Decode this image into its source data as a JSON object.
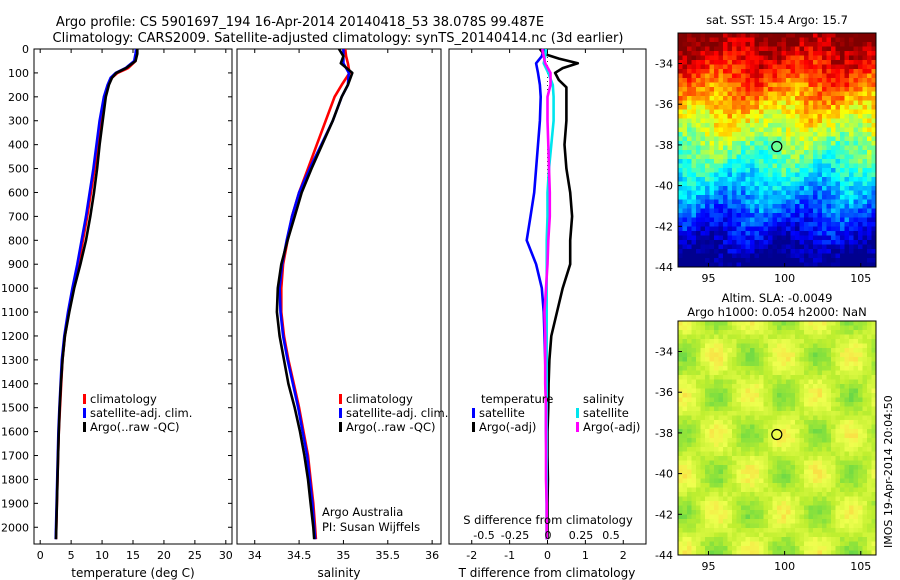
{
  "header": {
    "line1": "Argo profile: CS 5901697_194 16-Apr-2014 20140418_53 38.078S 99.487E",
    "line2": "Climatology: CARS2009. Satellite-adjusted climatology: synTS_20140414.nc (3d earlier)"
  },
  "colors": {
    "climatology": "#ff0000",
    "satellite": "#0000ff",
    "argo": "#000000",
    "salinity_satellite": "#00e5ee",
    "salinity_argo": "#ff00ff"
  },
  "chart_data": [
    {
      "id": "temperature",
      "type": "line",
      "xlabel": "temperature (deg C)",
      "ylabel": "",
      "xlim": [
        -1,
        31
      ],
      "ylim": [
        2070,
        0
      ],
      "xticks": [
        0,
        5,
        10,
        15,
        20,
        25,
        30
      ],
      "yticks": [
        0,
        100,
        200,
        300,
        400,
        500,
        600,
        700,
        800,
        900,
        1000,
        1100,
        1200,
        1300,
        1400,
        1500,
        1600,
        1700,
        1800,
        1900,
        2000
      ],
      "legend": [
        "climatology",
        "satellite-adj. clim.",
        "Argo(..raw -QC)"
      ],
      "legend_position": "lower-center",
      "series": [
        {
          "name": "climatology",
          "color": "#ff0000",
          "depth": [
            0,
            20,
            50,
            80,
            100,
            120,
            150,
            200,
            300,
            400,
            500,
            600,
            700,
            800,
            900,
            1000,
            1100,
            1200,
            1300,
            1400,
            1500,
            1600,
            1700,
            1800,
            1900,
            2000,
            2050
          ],
          "values": [
            15.6,
            15.6,
            15.4,
            14.2,
            12.5,
            11.6,
            11.0,
            10.4,
            9.8,
            9.3,
            8.8,
            8.2,
            7.6,
            6.9,
            6.2,
            5.3,
            4.6,
            4.0,
            3.6,
            3.4,
            3.2,
            3.0,
            2.9,
            2.8,
            2.7,
            2.6,
            2.55
          ]
        },
        {
          "name": "satellite-adj. clim.",
          "color": "#0000ff",
          "depth": [
            0,
            20,
            50,
            80,
            100,
            120,
            150,
            200,
            300,
            400,
            500,
            600,
            700,
            800,
            900,
            1000,
            1100,
            1200,
            1300,
            1400,
            1500,
            1600,
            1700,
            1800,
            1900,
            2000,
            2050
          ],
          "values": [
            15.5,
            15.4,
            15.2,
            13.8,
            12.2,
            11.4,
            10.9,
            10.3,
            9.6,
            9.1,
            8.6,
            8.0,
            7.4,
            6.7,
            6.0,
            5.2,
            4.5,
            3.9,
            3.5,
            3.3,
            3.1,
            2.95,
            2.85,
            2.75,
            2.65,
            2.55,
            2.5
          ]
        },
        {
          "name": "Argo(..raw -QC)",
          "color": "#000000",
          "depth": [
            0,
            20,
            50,
            80,
            100,
            120,
            150,
            200,
            300,
            400,
            500,
            600,
            700,
            800,
            900,
            1000,
            1100,
            1200,
            1300,
            1400,
            1500,
            1600,
            1700,
            1800,
            1900,
            2000,
            2050
          ],
          "values": [
            15.7,
            15.7,
            15.4,
            13.9,
            12.3,
            11.6,
            11.1,
            10.6,
            10.1,
            9.6,
            9.2,
            8.7,
            8.1,
            7.4,
            6.5,
            5.5,
            4.7,
            4.0,
            3.6,
            3.35,
            3.15,
            3.0,
            2.9,
            2.8,
            2.7,
            2.6,
            2.55
          ]
        }
      ]
    },
    {
      "id": "salinity",
      "type": "line",
      "xlabel": "salinity",
      "ylabel": "",
      "xlim": [
        33.8,
        36.1
      ],
      "ylim": [
        2070,
        0
      ],
      "xticks": [
        34,
        34.5,
        35,
        35.5,
        36
      ],
      "xtick_labels": [
        "34",
        "34.5",
        "35",
        "35.5",
        "36"
      ],
      "legend": [
        "climatology",
        "satellite-adj. clim.",
        "Argo(..raw -QC)"
      ],
      "legend_position": "lower-right",
      "annotation": [
        "Argo Australia",
        "PI: Susan Wijffels"
      ],
      "series": [
        {
          "name": "climatology",
          "color": "#ff0000",
          "depth": [
            0,
            30,
            60,
            100,
            150,
            200,
            300,
            400,
            500,
            600,
            700,
            800,
            900,
            1000,
            1100,
            1200,
            1300,
            1400,
            1500,
            1600,
            1700,
            1800,
            1900,
            2000,
            2050
          ],
          "values": [
            35.02,
            35.03,
            35.05,
            35.07,
            34.98,
            34.9,
            34.8,
            34.7,
            34.6,
            34.5,
            34.42,
            34.37,
            34.32,
            34.3,
            34.3,
            34.33,
            34.38,
            34.44,
            34.5,
            34.55,
            34.6,
            34.63,
            34.66,
            34.68,
            34.69
          ]
        },
        {
          "name": "satellite-adj. clim.",
          "color": "#0000ff",
          "depth": [
            0,
            30,
            60,
            100,
            150,
            200,
            300,
            400,
            500,
            600,
            700,
            800,
            900,
            1000,
            1100,
            1200,
            1300,
            1400,
            1500,
            1600,
            1700,
            1800,
            1900,
            2000,
            2050
          ],
          "values": [
            35.0,
            35.0,
            35.0,
            35.06,
            35.05,
            34.98,
            34.88,
            34.75,
            34.62,
            34.5,
            34.42,
            34.36,
            34.31,
            34.28,
            34.29,
            34.32,
            34.37,
            34.43,
            34.49,
            34.54,
            34.59,
            34.62,
            34.65,
            34.67,
            34.68
          ]
        },
        {
          "name": "Argo(..raw -QC)",
          "color": "#000000",
          "depth": [
            0,
            30,
            60,
            100,
            150,
            200,
            300,
            400,
            500,
            600,
            700,
            800,
            900,
            1000,
            1100,
            1200,
            1300,
            1400,
            1500,
            1600,
            1700,
            1800,
            1900,
            2000,
            2050
          ],
          "values": [
            34.95,
            35.0,
            34.97,
            35.1,
            35.05,
            34.98,
            34.88,
            34.76,
            34.64,
            34.53,
            34.45,
            34.37,
            34.3,
            34.26,
            34.25,
            34.28,
            34.33,
            34.38,
            34.45,
            34.51,
            34.56,
            34.6,
            34.63,
            34.66,
            34.67
          ]
        }
      ]
    },
    {
      "id": "differences",
      "type": "line",
      "xlabel": "T difference from climatology",
      "xlabel_top": "S difference from climatology",
      "xlim": [
        -2.6,
        2.6
      ],
      "ylim": [
        2070,
        0
      ],
      "xticks": [
        -2,
        -1,
        0,
        1,
        2
      ],
      "s_xticks": [
        -0.5,
        -0.25,
        0,
        0.25,
        0.5
      ],
      "s_xtick_labels": [
        "-0.5",
        "-0.25",
        "0",
        "0.25",
        "0.5"
      ],
      "legend_temperature_title": "temperature",
      "legend_salinity_title": "salinity",
      "legend": [
        "satellite",
        "Argo(-adj)",
        "satellite",
        "Argo(-adj)"
      ],
      "series": [
        {
          "name": "satellite",
          "group": "temperature",
          "color": "#0000ff",
          "depth": [
            0,
            30,
            60,
            100,
            150,
            200,
            300,
            400,
            500,
            600,
            700,
            800,
            900,
            1000,
            1100,
            1200,
            1300,
            1400,
            1500,
            1600,
            1700,
            1800,
            1900,
            2000,
            2050
          ],
          "values": [
            -0.1,
            -0.15,
            -0.3,
            -0.25,
            -0.2,
            -0.18,
            -0.2,
            -0.25,
            -0.3,
            -0.35,
            -0.45,
            -0.55,
            -0.3,
            -0.15,
            -0.1,
            -0.08,
            -0.06,
            -0.05,
            -0.04,
            -0.04,
            -0.03,
            -0.03,
            -0.02,
            -0.02,
            -0.02
          ]
        },
        {
          "name": "Argo(-adj)",
          "group": "temperature",
          "color": "#000000",
          "depth": [
            0,
            20,
            40,
            60,
            80,
            100,
            130,
            160,
            200,
            300,
            400,
            500,
            600,
            700,
            800,
            900,
            1000,
            1100,
            1200,
            1300,
            1400,
            1500,
            1600,
            1700,
            1800,
            1900,
            2000,
            2050
          ],
          "values": [
            -0.2,
            -0.1,
            0.3,
            0.8,
            0.4,
            0.2,
            0.3,
            0.5,
            0.5,
            0.5,
            0.45,
            0.5,
            0.6,
            0.65,
            0.6,
            0.6,
            0.4,
            0.25,
            0.1,
            0.05,
            0.03,
            0.02,
            0.0,
            0.0,
            0.01,
            0.0,
            0.0,
            0.0
          ]
        },
        {
          "name": "satellite",
          "group": "salinity",
          "color": "#00e5ee",
          "depth": [
            0,
            30,
            60,
            100,
            150,
            200,
            300,
            400,
            500,
            600,
            700,
            800,
            900,
            1000,
            1100,
            1200,
            1300,
            1400,
            1500,
            1600,
            1700,
            1800,
            1900,
            2000,
            2050
          ],
          "values": [
            -0.02,
            -0.03,
            -0.05,
            0.01,
            0.07,
            0.08,
            0.08,
            0.05,
            0.02,
            0.0,
            0.0,
            -0.01,
            -0.01,
            -0.01,
            -0.01,
            -0.01,
            -0.01,
            -0.01,
            -0.01,
            -0.01,
            -0.01,
            -0.01,
            -0.01,
            -0.01,
            -0.01
          ]
        },
        {
          "name": "Argo(-adj)",
          "group": "salinity",
          "color": "#ff00ff",
          "depth": [
            0,
            30,
            60,
            100,
            150,
            200,
            300,
            400,
            500,
            600,
            700,
            800,
            900,
            1000,
            1100,
            1200,
            1300,
            1400,
            1500,
            1600,
            1700,
            1800,
            1900,
            2000,
            2050
          ],
          "values": [
            -0.07,
            -0.05,
            -0.03,
            0.04,
            0.04,
            0.0,
            0.0,
            0.01,
            0.02,
            0.03,
            0.03,
            0.01,
            0.0,
            -0.02,
            -0.04,
            -0.03,
            -0.03,
            -0.03,
            -0.02,
            -0.02,
            -0.02,
            -0.02,
            -0.01,
            -0.01,
            -0.01
          ]
        }
      ]
    },
    {
      "id": "sst_map",
      "type": "heatmap",
      "title": "sat. SST: 15.4  Argo: 15.7",
      "xlim": [
        93,
        106
      ],
      "ylim": [
        -44,
        -32.5
      ],
      "xticks": [
        95,
        100,
        105
      ],
      "yticks": [
        -34,
        -36,
        -38,
        -40,
        -42,
        -44
      ],
      "marker": {
        "lon": 99.487,
        "lat": -38.078
      },
      "colorscale": [
        "#00008f",
        "#0000ff",
        "#007fff",
        "#00ffff",
        "#7fff7f",
        "#ffff00",
        "#ff7f00",
        "#ff0000",
        "#7f0000"
      ]
    },
    {
      "id": "sla_map",
      "type": "heatmap",
      "title_line1": "Altim. SLA: -0.0049",
      "title_line2": "Argo h1000: 0.054  h2000: NaN",
      "xlim": [
        93,
        106
      ],
      "ylim": [
        -44,
        -32.5
      ],
      "xticks": [
        95,
        100,
        105
      ],
      "yticks": [
        -34,
        -36,
        -38,
        -40,
        -42,
        -44
      ],
      "marker": {
        "lon": 99.487,
        "lat": -38.078
      },
      "colorscale": [
        "#2fbf5f",
        "#7fdf3f",
        "#bfef2f",
        "#efff4f",
        "#ffd040"
      ]
    }
  ],
  "footer_stamp": "IMOS 19-Apr-2014 20:04:50"
}
